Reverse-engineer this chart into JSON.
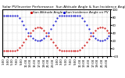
{
  "title": "Solar PV/Inverter Performance  Sun Altitude Angle & Sun Incidence Angle on PV Panels",
  "legend": [
    "Sun Altitude Angle",
    "Sun Incidence Angle on PV"
  ],
  "red_color": "#cc0000",
  "blue_color": "#0000cc",
  "background": "#ffffff",
  "grid_color": "#aaaaaa",
  "title_fontsize": 3.2,
  "tick_fontsize": 2.8,
  "legend_fontsize": 3.0,
  "ylim": [
    -20,
    100
  ],
  "yticks": [
    -20,
    0,
    20,
    40,
    60,
    80,
    100
  ],
  "x_points": [
    0,
    1,
    2,
    3,
    4,
    5,
    6,
    7,
    8,
    9,
    10,
    11,
    12,
    13,
    14,
    15,
    16,
    17,
    18,
    19,
    20,
    21,
    22,
    23,
    24,
    25,
    26,
    27,
    28,
    29,
    30,
    31,
    32,
    33,
    34,
    35,
    36,
    37,
    38,
    39,
    40,
    41,
    42,
    43,
    44,
    45,
    46,
    47
  ],
  "sun_altitude": [
    -5,
    -5,
    -5,
    -5,
    -5,
    -5,
    -4,
    2,
    8,
    16,
    24,
    32,
    40,
    47,
    52,
    55,
    55,
    52,
    47,
    40,
    32,
    24,
    16,
    8,
    2,
    -4,
    -5,
    -5,
    -5,
    -5,
    -5,
    -5,
    -5,
    -5,
    -4,
    2,
    8,
    16,
    24,
    32,
    40,
    47,
    52,
    55,
    55,
    52,
    47,
    40
  ],
  "sun_incidence": [
    85,
    85,
    85,
    85,
    85,
    85,
    84,
    78,
    70,
    60,
    50,
    40,
    32,
    26,
    22,
    20,
    20,
    22,
    26,
    32,
    40,
    50,
    60,
    70,
    78,
    84,
    85,
    85,
    85,
    85,
    85,
    85,
    85,
    85,
    84,
    78,
    70,
    60,
    50,
    40,
    32,
    26,
    22,
    20,
    20,
    22,
    26,
    32
  ],
  "xtick_step": 2
}
